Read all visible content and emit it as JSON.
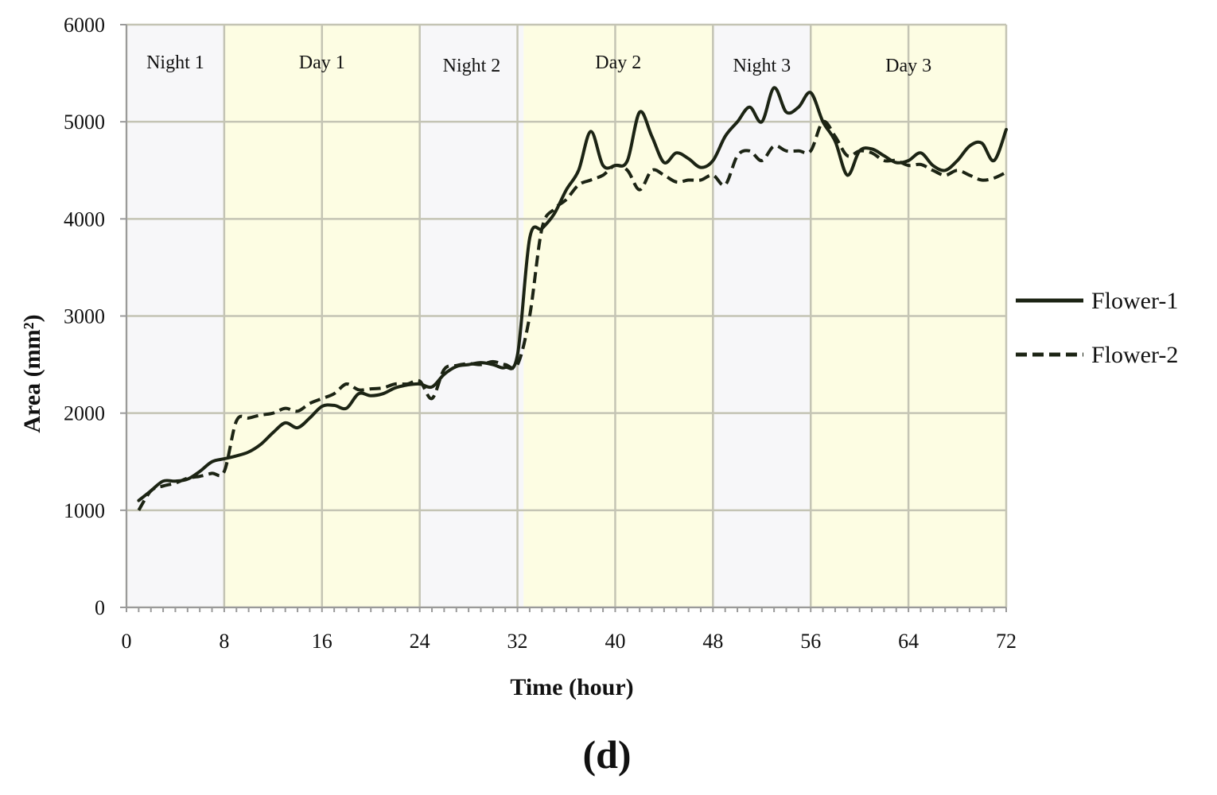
{
  "chart_data": {
    "type": "line",
    "xlabel": "Time (hour)",
    "ylabel": "Area (mm²)",
    "panel_label": "(d)",
    "xlim": [
      0,
      72
    ],
    "ylim": [
      0,
      6000
    ],
    "x_ticks": [
      0,
      8,
      16,
      24,
      32,
      40,
      48,
      56,
      64,
      72
    ],
    "y_ticks": [
      0,
      1000,
      2000,
      3000,
      4000,
      5000,
      6000
    ],
    "grid": true,
    "legend_position": "right",
    "bands": [
      {
        "label": "Night 1",
        "start": 0,
        "end": 8,
        "color": "#f7f7f9"
      },
      {
        "label": "Day 1",
        "start": 8,
        "end": 24,
        "color": "#fdfde3"
      },
      {
        "label": "Night 2",
        "start": 24,
        "end": 32.5,
        "color": "#f7f7f9"
      },
      {
        "label": "Day 2",
        "start": 32.5,
        "end": 48,
        "color": "#fdfde3"
      },
      {
        "label": "Night 3",
        "start": 48,
        "end": 56,
        "color": "#f7f7f9"
      },
      {
        "label": "Day 3",
        "start": 56,
        "end": 72,
        "color": "#fdfde3"
      }
    ],
    "x": [
      1,
      2,
      3,
      4,
      5,
      6,
      7,
      8,
      9,
      10,
      11,
      12,
      13,
      14,
      15,
      16,
      17,
      18,
      19,
      20,
      21,
      22,
      23,
      24,
      25,
      26,
      27,
      28,
      29,
      30,
      31,
      32,
      33,
      34,
      35,
      36,
      37,
      38,
      39,
      40,
      41,
      42,
      43,
      44,
      45,
      46,
      47,
      48,
      49,
      50,
      51,
      52,
      53,
      54,
      55,
      56,
      57,
      58,
      59,
      60,
      61,
      62,
      63,
      64,
      65,
      66,
      67,
      68,
      69,
      70,
      71,
      72
    ],
    "series": [
      {
        "name": "Flower-1",
        "style": "solid",
        "color": "#1c2414",
        "values": [
          1100,
          1200,
          1300,
          1300,
          1320,
          1400,
          1500,
          1530,
          1560,
          1600,
          1680,
          1800,
          1900,
          1850,
          1950,
          2070,
          2080,
          2050,
          2200,
          2180,
          2200,
          2260,
          2290,
          2300,
          2270,
          2400,
          2480,
          2500,
          2520,
          2500,
          2470,
          2600,
          3800,
          3900,
          4050,
          4300,
          4500,
          4900,
          4550,
          4550,
          4600,
          5100,
          4850,
          4580,
          4680,
          4620,
          4530,
          4600,
          4850,
          5000,
          5150,
          5000,
          5350,
          5100,
          5150,
          5300,
          5000,
          4800,
          4450,
          4700,
          4720,
          4650,
          4580,
          4600,
          4680,
          4550,
          4500,
          4600,
          4750,
          4780,
          4600,
          4920
        ]
      },
      {
        "name": "Flower-2",
        "style": "dashed",
        "color": "#1c2414",
        "values": [
          1000,
          1200,
          1250,
          1280,
          1330,
          1350,
          1380,
          1400,
          1920,
          1950,
          1980,
          2000,
          2050,
          2020,
          2100,
          2150,
          2200,
          2300,
          2240,
          2250,
          2260,
          2300,
          2300,
          2330,
          2150,
          2450,
          2490,
          2510,
          2500,
          2530,
          2500,
          2500,
          3000,
          3900,
          4100,
          4200,
          4350,
          4400,
          4450,
          4550,
          4500,
          4300,
          4500,
          4450,
          4380,
          4400,
          4400,
          4450,
          4350,
          4650,
          4700,
          4600,
          4750,
          4700,
          4700,
          4700,
          5000,
          4850,
          4650,
          4700,
          4680,
          4600,
          4600,
          4550,
          4560,
          4500,
          4450,
          4500,
          4450,
          4400,
          4420,
          4480
        ]
      }
    ]
  }
}
